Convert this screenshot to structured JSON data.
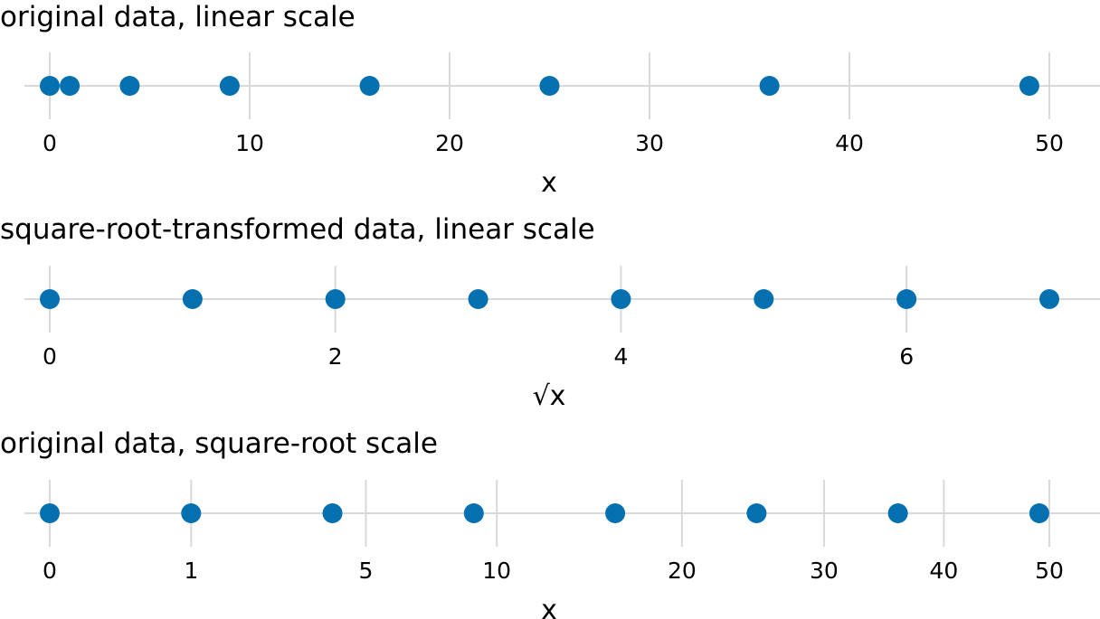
{
  "colors": {
    "point": "#0570b0",
    "grid": "#d9d9d9"
  },
  "chart_data": [
    {
      "type": "scatter",
      "title": "original data, linear scale",
      "xlabel": "x",
      "x_scale": "linear",
      "xlim": [
        0,
        50
      ],
      "x_ticks": [
        0,
        10,
        20,
        30,
        40,
        50
      ],
      "tick_labels": [
        "0",
        "10",
        "20",
        "30",
        "40",
        "50"
      ],
      "grid": true,
      "x": [
        0,
        1,
        4,
        9,
        16,
        25,
        36,
        49
      ]
    },
    {
      "type": "scatter",
      "title": "square-root-transformed data, linear scale",
      "xlabel": "√x",
      "x_scale": "linear",
      "xlim": [
        0,
        7
      ],
      "x_ticks": [
        0,
        2,
        4,
        6
      ],
      "tick_labels": [
        "0",
        "2",
        "4",
        "6"
      ],
      "grid": true,
      "x": [
        0,
        1,
        2,
        3,
        4,
        5,
        6,
        7
      ]
    },
    {
      "type": "scatter",
      "title": "original data, square-root scale",
      "xlabel": "x",
      "x_scale": "sqrt",
      "xlim": [
        0,
        50
      ],
      "x_ticks": [
        0,
        1,
        5,
        10,
        20,
        30,
        40,
        50
      ],
      "tick_labels": [
        "0",
        "1",
        "5",
        "10",
        "20",
        "30",
        "40",
        "50"
      ],
      "grid": true,
      "x": [
        0,
        1,
        4,
        9,
        16,
        25,
        36,
        49
      ]
    }
  ]
}
